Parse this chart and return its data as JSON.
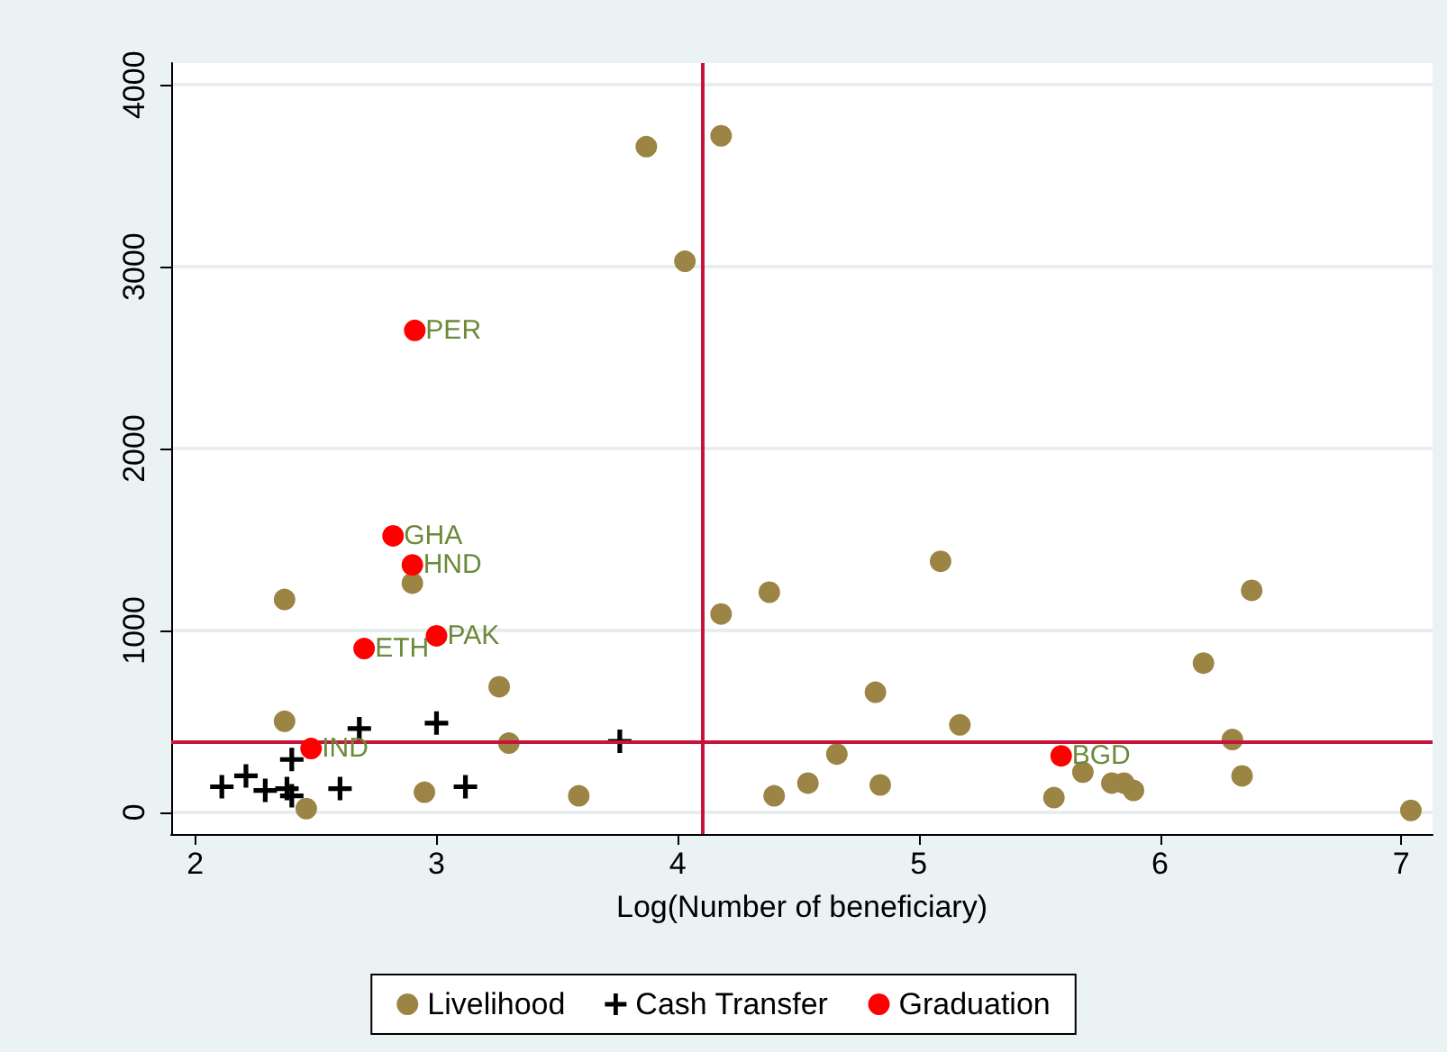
{
  "chart_data": {
    "type": "scatter",
    "xlabel": "Log(Number of beneficiary)",
    "xlim": [
      1.9,
      7.13
    ],
    "xticks": [
      2,
      3,
      4,
      5,
      6,
      7
    ],
    "ylim": [
      -120,
      4120
    ],
    "yticks": [
      0,
      1000,
      2000,
      3000,
      4000
    ],
    "grid": "y",
    "legend": "bottom",
    "series": [
      {
        "name": "Livelihood",
        "color": "#9c8445",
        "marker": "circle",
        "x": [
          3.87,
          4.18,
          4.03,
          2.37,
          2.9,
          4.18,
          4.38,
          5.09,
          6.38,
          6.18,
          4.82,
          5.17,
          3.26,
          2.37,
          3.3,
          4.66,
          6.3,
          5.68,
          6.34,
          5.8,
          5.85,
          5.89,
          4.54,
          4.84,
          4.4,
          5.56,
          7.04,
          2.95,
          3.59,
          2.46
        ],
        "values": [
          3660,
          3720,
          3030,
          1170,
          1260,
          1090,
          1210,
          1380,
          1220,
          820,
          660,
          480,
          690,
          500,
          380,
          320,
          400,
          220,
          200,
          160,
          160,
          120,
          160,
          150,
          90,
          80,
          10,
          110,
          90,
          20
        ]
      },
      {
        "name": "Cash Transfer",
        "color": "#000000",
        "marker": "cross",
        "x": [
          2.11,
          2.21,
          2.29,
          2.38,
          2.4,
          2.4,
          2.68,
          2.6,
          3.0,
          3.12,
          3.76
        ],
        "values": [
          140,
          200,
          120,
          130,
          90,
          290,
          460,
          130,
          490,
          140,
          390
        ]
      },
      {
        "name": "Graduation",
        "color": "#ff0000",
        "marker": "circle",
        "x": [
          2.91,
          2.82,
          2.9,
          3.0,
          2.7,
          2.48,
          5.59
        ],
        "values": [
          2650,
          1520,
          1360,
          970,
          900,
          350,
          310
        ]
      }
    ],
    "ref_lines": [
      {
        "axis": "x",
        "value": 4.1,
        "color": "#c8143c"
      },
      {
        "axis": "y",
        "value": 390,
        "color": "#c8143c"
      }
    ],
    "annotations": [
      {
        "text": "PER",
        "x": 2.91,
        "y": 2650
      },
      {
        "text": "GHA",
        "x": 2.82,
        "y": 1520
      },
      {
        "text": "HND",
        "x": 2.9,
        "y": 1360
      },
      {
        "text": "PAK",
        "x": 3.0,
        "y": 970
      },
      {
        "text": "ETH",
        "x": 2.7,
        "y": 900
      },
      {
        "text": "IND",
        "x": 2.48,
        "y": 350
      },
      {
        "text": "BGD",
        "x": 5.59,
        "y": 310
      }
    ]
  }
}
